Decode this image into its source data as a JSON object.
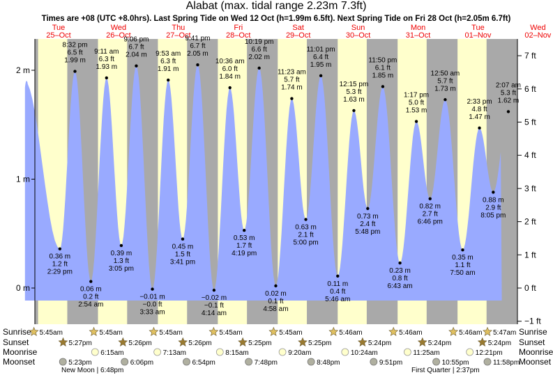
{
  "chart_data": {
    "type": "area",
    "title": "Alabat (max. tidal range 2.23m 7.3ft)",
    "subtitle": "Times are +08 (UTC +8.0hrs). Last Spring Tide on Wed 12 Oct (h=1.99m 6.5ft). Next Spring Tide on Fri 28 Oct (h=2.05m 6.7ft)",
    "y_left_label_unit": "m",
    "y_right_label_unit": "ft",
    "ylim_m": [
      -0.28,
      2.37
    ],
    "left_ticks": [
      {
        "v": 0,
        "label": "0 m"
      },
      {
        "v": 1,
        "label": "1 m"
      },
      {
        "v": 2,
        "label": "2 m"
      }
    ],
    "right_ticks": [
      {
        "v": -1,
        "label": "−1 ft"
      },
      {
        "v": 0,
        "label": "0 ft"
      },
      {
        "v": 1,
        "label": "1 ft"
      },
      {
        "v": 2,
        "label": "2 ft"
      },
      {
        "v": 3,
        "label": "3 ft"
      },
      {
        "v": 4,
        "label": "4 ft"
      },
      {
        "v": 5,
        "label": "5 ft"
      },
      {
        "v": 6,
        "label": "6 ft"
      },
      {
        "v": 7,
        "label": "7 ft"
      }
    ],
    "x_range_hours": [
      0,
      192
    ],
    "days": [
      {
        "dow": "Tue",
        "date": "25–Oct",
        "hour": 0
      },
      {
        "dow": "Wed",
        "date": "26–Oct",
        "hour": 24
      },
      {
        "dow": "Thu",
        "date": "27–Oct",
        "hour": 48
      },
      {
        "dow": "Fri",
        "date": "28–Oct",
        "hour": 72
      },
      {
        "dow": "Sat",
        "date": "29–Oct",
        "hour": 96
      },
      {
        "dow": "Sun",
        "date": "30–Oct",
        "hour": 120
      },
      {
        "dow": "Mon",
        "date": "31–Oct",
        "hour": 144
      },
      {
        "dow": "Tue",
        "date": "01–Nov",
        "hour": 168
      },
      {
        "dow": "Wed",
        "date": "02–Nov",
        "hour": 192
      }
    ],
    "night_bands": [
      {
        "start": -6.5,
        "end": 5.75
      },
      {
        "start": 17.45,
        "end": 29.75
      },
      {
        "start": 41.43,
        "end": 53.75
      },
      {
        "start": 65.43,
        "end": 77.75
      },
      {
        "start": 89.42,
        "end": 101.75
      },
      {
        "start": 113.42,
        "end": 125.77
      },
      {
        "start": 137.4,
        "end": 149.77
      },
      {
        "start": 161.4,
        "end": 173.77
      },
      {
        "start": 185.4,
        "end": 197.78
      }
    ],
    "curve_start": {
      "h": 0.5,
      "m": 1.9
    },
    "curve_end": {
      "h": 191.5,
      "m": 1.62
    },
    "extrema": [
      {
        "h": 14.48,
        "m": 0.36,
        "type": "low",
        "t": "2:29 pm",
        "m_label": "0.36 m",
        "ft_label": "1.2 ft"
      },
      {
        "h": 20.53,
        "m": 1.99,
        "type": "high",
        "t": "8:32 pm",
        "m_label": "1.99 m",
        "ft_label": "6.5 ft"
      },
      {
        "h": 26.9,
        "m": 0.06,
        "type": "low",
        "t": "2:54 am",
        "m_label": "0.06 m",
        "ft_label": "0.2 ft"
      },
      {
        "h": 33.18,
        "m": 1.93,
        "type": "high",
        "t": "9:11 am",
        "m_label": "1.93 m",
        "ft_label": "6.3 ft"
      },
      {
        "h": 39.08,
        "m": 0.39,
        "type": "low",
        "t": "3:05 pm",
        "m_label": "0.39 m",
        "ft_label": "1.3 ft"
      },
      {
        "h": 45.1,
        "m": 2.04,
        "type": "high",
        "t": "9:06 pm",
        "m_label": "2.04 m",
        "ft_label": "6.7 ft"
      },
      {
        "h": 51.55,
        "m": -0.01,
        "type": "low",
        "t": "3:33 am",
        "m_label": "−0.01 m",
        "ft_label": "−0.0 ft"
      },
      {
        "h": 57.88,
        "m": 1.91,
        "type": "high",
        "t": "9:53 am",
        "m_label": "1.91 m",
        "ft_label": "6.3 ft"
      },
      {
        "h": 63.68,
        "m": 0.45,
        "type": "low",
        "t": "3:41 pm",
        "m_label": "0.45 m",
        "ft_label": "1.5 ft"
      },
      {
        "h": 69.68,
        "m": 2.05,
        "type": "high",
        "t": "9:41 pm",
        "m_label": "2.05 m",
        "ft_label": "6.7 ft"
      },
      {
        "h": 76.23,
        "m": -0.02,
        "type": "low",
        "t": "4:14 am",
        "m_label": "−0.02 m",
        "ft_label": "−0.1 ft"
      },
      {
        "h": 82.6,
        "m": 1.84,
        "type": "high",
        "t": "10:36 am",
        "m_label": "1.84 m",
        "ft_label": "6.0 ft"
      },
      {
        "h": 88.32,
        "m": 0.53,
        "type": "low",
        "t": "4:19 pm",
        "m_label": "0.53 m",
        "ft_label": "1.7 ft"
      },
      {
        "h": 94.32,
        "m": 2.02,
        "type": "high",
        "t": "10:19 pm",
        "m_label": "2.02 m",
        "ft_label": "6.6 ft"
      },
      {
        "h": 100.97,
        "m": 0.02,
        "type": "low",
        "t": "4:58 am",
        "m_label": "0.02 m",
        "ft_label": "0.1 ft"
      },
      {
        "h": 107.38,
        "m": 1.74,
        "type": "high",
        "t": "11:23 am",
        "m_label": "1.74 m",
        "ft_label": "5.7 ft"
      },
      {
        "h": 113.0,
        "m": 0.63,
        "type": "low",
        "t": "5:00 pm",
        "m_label": "0.63 m",
        "ft_label": "2.1 ft"
      },
      {
        "h": 119.02,
        "m": 1.95,
        "type": "high",
        "t": "11:01 pm",
        "m_label": "1.95 m",
        "ft_label": "6.4 ft"
      },
      {
        "h": 125.77,
        "m": 0.11,
        "type": "low",
        "t": "5:46 am",
        "m_label": "0.11 m",
        "ft_label": "0.4 ft"
      },
      {
        "h": 132.25,
        "m": 1.63,
        "type": "high",
        "t": "12:15 pm",
        "m_label": "1.63 m",
        "ft_label": "5.3 ft"
      },
      {
        "h": 137.8,
        "m": 0.73,
        "type": "low",
        "t": "5:48 pm",
        "m_label": "0.73 m",
        "ft_label": "2.4 ft"
      },
      {
        "h": 143.83,
        "m": 1.85,
        "type": "high",
        "t": "11:50 pm",
        "m_label": "1.85 m",
        "ft_label": "6.1 ft"
      },
      {
        "h": 150.72,
        "m": 0.23,
        "type": "low",
        "t": "6:43 am",
        "m_label": "0.23 m",
        "ft_label": "0.8 ft"
      },
      {
        "h": 157.28,
        "m": 1.53,
        "type": "high",
        "t": "1:17 pm",
        "m_label": "1.53 m",
        "ft_label": "5.0 ft"
      },
      {
        "h": 162.77,
        "m": 0.82,
        "type": "low",
        "t": "6:46 pm",
        "m_label": "0.82 m",
        "ft_label": "2.7 ft"
      },
      {
        "h": 168.83,
        "m": 1.73,
        "type": "high",
        "t": "12:50 am",
        "m_label": "1.73 m",
        "ft_label": "5.7 ft"
      },
      {
        "h": 175.83,
        "m": 0.35,
        "type": "low",
        "t": "7:50 am",
        "m_label": "0.35 m",
        "ft_label": "1.1 ft"
      },
      {
        "h": 182.55,
        "m": 1.47,
        "type": "high",
        "t": "2:33 pm",
        "m_label": "1.47 m",
        "ft_label": "4.8 ft"
      },
      {
        "h": 188.08,
        "m": 0.88,
        "type": "low",
        "t": "8:05 pm",
        "m_label": "0.88 m",
        "ft_label": "2.9 ft"
      },
      {
        "h": 194.12,
        "m": 1.62,
        "type": "high",
        "t": "2:07 am",
        "m_label": "1.62 m",
        "ft_label": "5.3 ft"
      }
    ],
    "rows": [
      {
        "label": "Sunrise",
        "kind": "sunrise",
        "items": [
          {
            "h": 5.75,
            "t": "5:45am"
          },
          {
            "h": 29.75,
            "t": "5:45am"
          },
          {
            "h": 53.75,
            "t": "5:45am"
          },
          {
            "h": 77.75,
            "t": "5:45am"
          },
          {
            "h": 101.75,
            "t": "5:45am"
          },
          {
            "h": 125.77,
            "t": "5:46am"
          },
          {
            "h": 149.77,
            "t": "5:46am"
          },
          {
            "h": 173.77,
            "t": "5:46am"
          },
          {
            "h": 197.78,
            "t": "5:47am"
          }
        ]
      },
      {
        "label": "Sunset",
        "kind": "sunset",
        "items": [
          {
            "h": 17.45,
            "t": "5:27pm"
          },
          {
            "h": 41.43,
            "t": "5:26pm"
          },
          {
            "h": 65.43,
            "t": "5:26pm"
          },
          {
            "h": 89.42,
            "t": "5:25pm"
          },
          {
            "h": 113.42,
            "t": "5:25pm"
          },
          {
            "h": 137.4,
            "t": "5:24pm"
          },
          {
            "h": 161.4,
            "t": "5:24pm"
          },
          {
            "h": 185.4,
            "t": "5:24pm"
          }
        ]
      },
      {
        "label": "Moonrise",
        "kind": "moonrise",
        "items": [
          {
            "h": 30.25,
            "t": "6:15am"
          },
          {
            "h": 55.2,
            "t": "7:13am"
          },
          {
            "h": 80.25,
            "t": "8:15am"
          },
          {
            "h": 105.33,
            "t": "9:20am"
          },
          {
            "h": 130.4,
            "t": "10:24am"
          },
          {
            "h": 155.42,
            "t": "11:25am"
          },
          {
            "h": 180.35,
            "t": "12:21pm"
          }
        ]
      },
      {
        "label": "Moonset",
        "kind": "moonset",
        "items": [
          {
            "h": 17.38,
            "t": "5:23pm"
          },
          {
            "h": 42.1,
            "t": "6:06pm"
          },
          {
            "h": 66.9,
            "t": "6:54pm"
          },
          {
            "h": 91.8,
            "t": "7:48pm"
          },
          {
            "h": 116.8,
            "t": "8:48pm"
          },
          {
            "h": 141.85,
            "t": "9:51pm"
          },
          {
            "h": 166.92,
            "t": "10:55pm"
          },
          {
            "h": 191.97,
            "t": "11:58pm"
          }
        ]
      }
    ],
    "moon_phases": [
      {
        "text": "New Moon | 6:48pm"
      },
      {
        "text": "First Quarter | 2:37pm"
      }
    ],
    "colors": {
      "day": "#ffffcc",
      "night": "#a9a9a9",
      "water": "#99aaff",
      "sunrise_star": "#e0c060",
      "sunset_star": "#9a7a30",
      "moonrise": "#ffffcc",
      "moonset": "#b0b0a0",
      "date_red": "#ee0000"
    }
  }
}
